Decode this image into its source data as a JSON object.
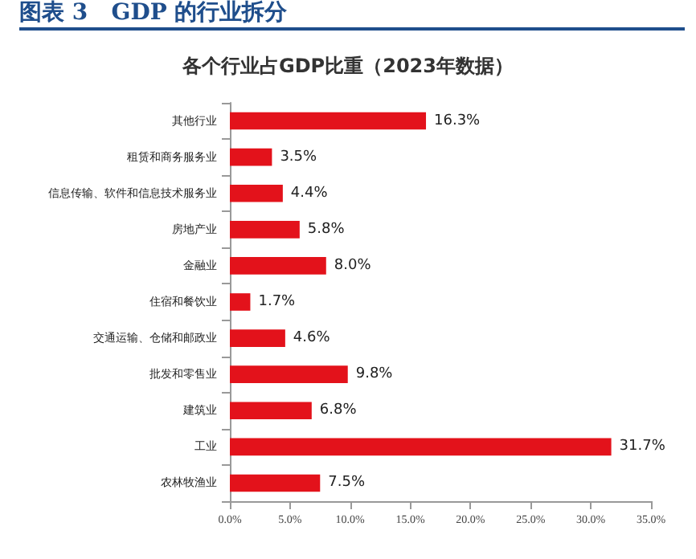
{
  "chart_data": {
    "type": "bar",
    "orientation": "horizontal",
    "title": "图表 3   GDP 的行业拆分",
    "subtitle": "各个行业占GDP比重（2023年数据）",
    "categories": [
      "其他行业",
      "租赁和商务服务业",
      "信息传输、软件和信息技术服务业",
      "房地产业",
      "金融业",
      "住宿和餐饮业",
      "交通运输、仓储和邮政业",
      "批发和零售业",
      "建筑业",
      "工业",
      "农林牧渔业"
    ],
    "values": [
      16.3,
      3.5,
      4.4,
      5.8,
      8.0,
      1.7,
      4.6,
      9.8,
      6.8,
      31.7,
      7.5
    ],
    "value_labels": [
      "16.3%",
      "3.5%",
      "4.4%",
      "5.8%",
      "8.0%",
      "1.7%",
      "4.6%",
      "9.8%",
      "6.8%",
      "31.7%",
      "7.5%"
    ],
    "color": "#e3121b",
    "xlim": [
      0,
      35
    ],
    "xticks": [
      {
        "value": 0,
        "label": "0.0%"
      },
      {
        "value": 5,
        "label": "5.0%"
      },
      {
        "value": 10,
        "label": "10.0%"
      },
      {
        "value": 15,
        "label": "15.0%"
      },
      {
        "value": 20,
        "label": "20.0%"
      },
      {
        "value": 25,
        "label": "25.0%"
      },
      {
        "value": 30,
        "label": "30.0%"
      },
      {
        "value": 35,
        "label": "35.0%"
      }
    ],
    "grid": false
  }
}
